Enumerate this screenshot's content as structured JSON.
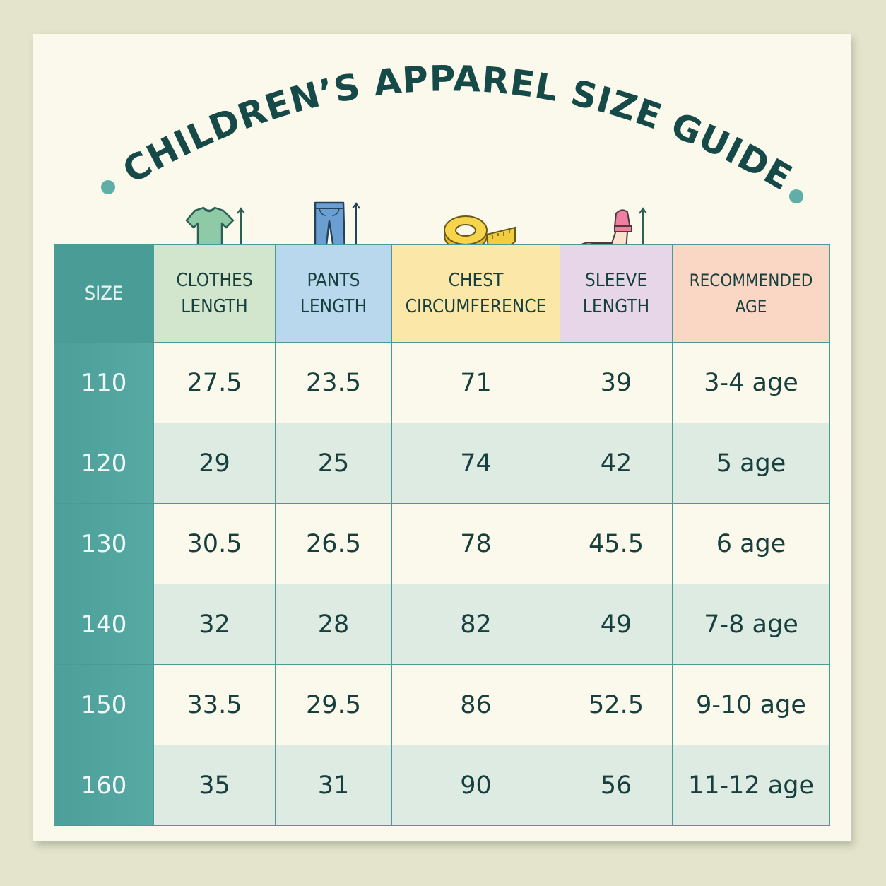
{
  "title": "CHILDREN’S APPAREL SIZE GUIDE",
  "colors": {
    "background": "#e3e4cb",
    "card": "#fbf8ec",
    "title": "#164a48",
    "teal": "#4a9c97",
    "header_clothes": "#d1e6cd",
    "header_pants": "#b9d8ee",
    "header_chest": "#fbe7a7",
    "header_sleeve": "#e6d6e8",
    "header_age": "#fad6c5",
    "row_alt": "#deebe3"
  },
  "headers": {
    "size": "SIZE",
    "clothes": [
      "CLOTHES",
      "LENGTH"
    ],
    "pants": [
      "PANTS",
      "LENGTH"
    ],
    "chest": [
      "CHEST",
      "CIRCUMFERENCE"
    ],
    "sleeve": [
      "SLEEVE",
      "LENGTH"
    ],
    "age": [
      "RECOMMENDED",
      "AGE"
    ]
  },
  "header_icons": {
    "clothes": "t-shirt-icon",
    "pants": "jeans-icon",
    "chest": "measuring-tape-icon",
    "sleeve": "arm-sleeve-icon"
  },
  "rows": [
    {
      "size": "110",
      "clothes": "27.5",
      "pants": "23.5",
      "chest": "71",
      "sleeve": "39",
      "age": "3-4 age"
    },
    {
      "size": "120",
      "clothes": "29",
      "pants": "25",
      "chest": "74",
      "sleeve": "42",
      "age": "5 age"
    },
    {
      "size": "130",
      "clothes": "30.5",
      "pants": "26.5",
      "chest": "78",
      "sleeve": "45.5",
      "age": "6 age"
    },
    {
      "size": "140",
      "clothes": "32",
      "pants": "28",
      "chest": "82",
      "sleeve": "49",
      "age": "7-8 age"
    },
    {
      "size": "150",
      "clothes": "33.5",
      "pants": "29.5",
      "chest": "86",
      "sleeve": "52.5",
      "age": "9-10 age"
    },
    {
      "size": "160",
      "clothes": "35",
      "pants": "31",
      "chest": "90",
      "sleeve": "56",
      "age": "11-12 age"
    }
  ]
}
